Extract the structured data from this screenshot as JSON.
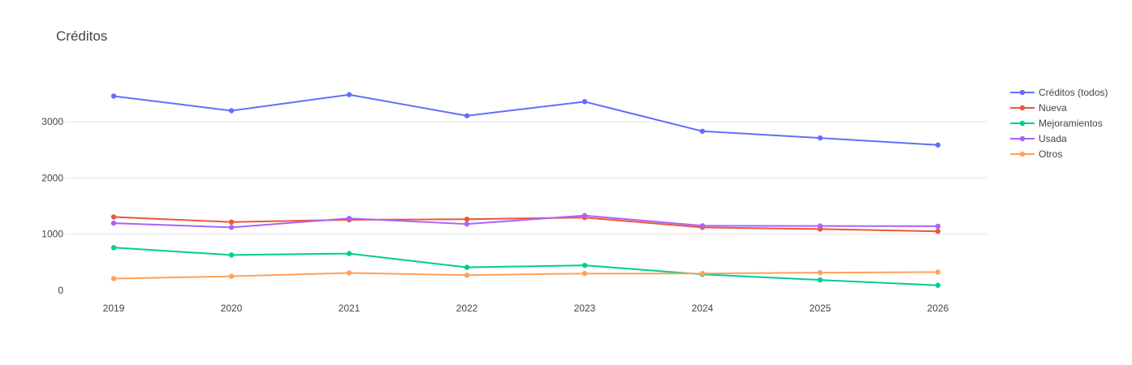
{
  "chart_data": {
    "type": "line",
    "title": "Créditos",
    "xlabel": "",
    "ylabel": "",
    "x": [
      "2019",
      "2020",
      "2021",
      "2022",
      "2023",
      "2024",
      "2025",
      "2026"
    ],
    "ylim": [
      -100,
      4000
    ],
    "yticks": [
      0,
      1000,
      2000,
      3000
    ],
    "ytick_labels": [
      "0",
      "1000",
      "2000",
      "3000"
    ],
    "grid": true,
    "legend_position": "top-right",
    "series": [
      {
        "name": "Créditos (todos)",
        "color": "#636efa",
        "values": [
          3455,
          3195,
          3480,
          3105,
          3355,
          2830,
          2710,
          2585
        ]
      },
      {
        "name": "Nueva",
        "color": "#ef553b",
        "values": [
          1305,
          1215,
          1255,
          1265,
          1295,
          1120,
          1090,
          1050
        ]
      },
      {
        "name": "Mejoramientos",
        "color": "#00cc96",
        "values": [
          760,
          630,
          655,
          410,
          445,
          285,
          185,
          90
        ]
      },
      {
        "name": "Usada",
        "color": "#ab63fa",
        "values": [
          1195,
          1120,
          1280,
          1180,
          1330,
          1150,
          1145,
          1140
        ]
      },
      {
        "name": "Otros",
        "color": "#ffa15a",
        "values": [
          210,
          250,
          310,
          270,
          300,
          300,
          315,
          325
        ]
      }
    ]
  }
}
